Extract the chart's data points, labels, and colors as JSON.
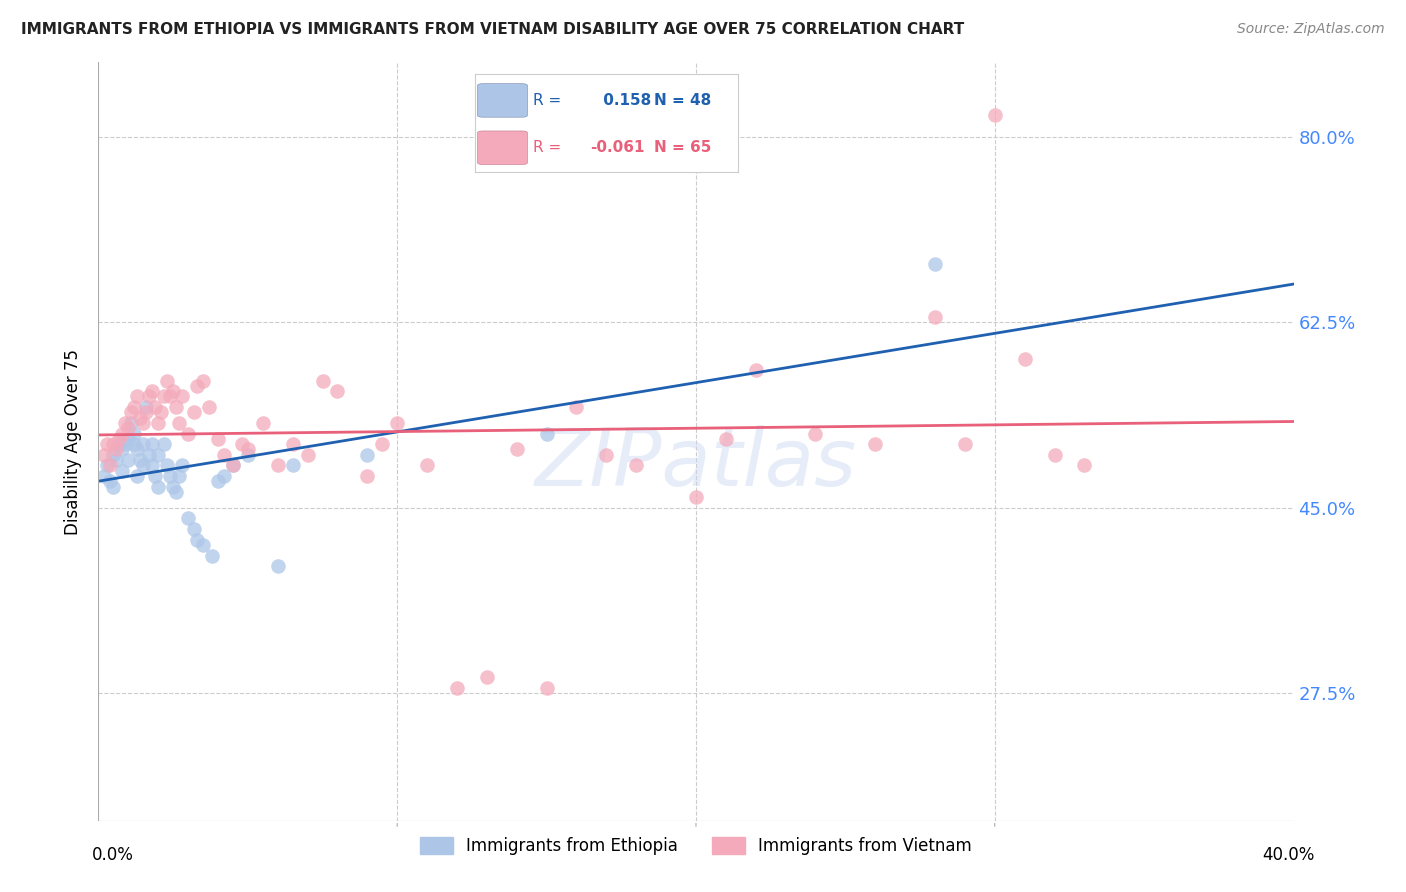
{
  "title": "IMMIGRANTS FROM ETHIOPIA VS IMMIGRANTS FROM VIETNAM DISABILITY AGE OVER 75 CORRELATION CHART",
  "source": "Source: ZipAtlas.com",
  "ylabel": "Disability Age Over 75",
  "ytick_labels": [
    "80.0%",
    "62.5%",
    "45.0%",
    "27.5%"
  ],
  "ytick_values": [
    0.8,
    0.625,
    0.45,
    0.275
  ],
  "xlim": [
    0.0,
    0.4
  ],
  "ylim": [
    0.155,
    0.87
  ],
  "legend_ethiopia": {
    "R": 0.158,
    "N": 48,
    "label": "Immigrants from Ethiopia"
  },
  "legend_vietnam": {
    "R": -0.061,
    "N": 65,
    "label": "Immigrants from Vietnam"
  },
  "color_ethiopia": "#adc6e8",
  "color_vietnam": "#f4aabb",
  "line_color_ethiopia": "#2060b0",
  "line_color_vietnam": "#e8607a",
  "watermark": "ZIPatlas",
  "ethiopia_x": [
    0.002,
    0.003,
    0.004,
    0.005,
    0.005,
    0.006,
    0.007,
    0.008,
    0.008,
    0.009,
    0.01,
    0.01,
    0.011,
    0.012,
    0.012,
    0.013,
    0.013,
    0.014,
    0.015,
    0.015,
    0.016,
    0.017,
    0.018,
    0.018,
    0.019,
    0.02,
    0.02,
    0.022,
    0.023,
    0.024,
    0.025,
    0.026,
    0.027,
    0.028,
    0.03,
    0.032,
    0.033,
    0.035,
    0.038,
    0.04,
    0.042,
    0.045,
    0.05,
    0.06,
    0.065,
    0.09,
    0.15,
    0.28
  ],
  "ethiopia_y": [
    0.48,
    0.49,
    0.475,
    0.5,
    0.47,
    0.495,
    0.51,
    0.505,
    0.485,
    0.51,
    0.515,
    0.495,
    0.53,
    0.52,
    0.51,
    0.505,
    0.48,
    0.495,
    0.51,
    0.49,
    0.545,
    0.5,
    0.49,
    0.51,
    0.48,
    0.5,
    0.47,
    0.51,
    0.49,
    0.48,
    0.47,
    0.465,
    0.48,
    0.49,
    0.44,
    0.43,
    0.42,
    0.415,
    0.405,
    0.475,
    0.48,
    0.49,
    0.5,
    0.395,
    0.49,
    0.5,
    0.52,
    0.68
  ],
  "vietnam_x": [
    0.002,
    0.003,
    0.004,
    0.005,
    0.006,
    0.007,
    0.008,
    0.009,
    0.01,
    0.011,
    0.012,
    0.013,
    0.014,
    0.015,
    0.016,
    0.017,
    0.018,
    0.019,
    0.02,
    0.021,
    0.022,
    0.023,
    0.024,
    0.025,
    0.026,
    0.027,
    0.028,
    0.03,
    0.032,
    0.033,
    0.035,
    0.037,
    0.04,
    0.042,
    0.045,
    0.048,
    0.05,
    0.055,
    0.06,
    0.065,
    0.07,
    0.075,
    0.08,
    0.09,
    0.095,
    0.1,
    0.11,
    0.12,
    0.13,
    0.14,
    0.15,
    0.16,
    0.17,
    0.18,
    0.2,
    0.21,
    0.22,
    0.24,
    0.26,
    0.28,
    0.29,
    0.3,
    0.31,
    0.32,
    0.33
  ],
  "vietnam_y": [
    0.5,
    0.51,
    0.49,
    0.51,
    0.505,
    0.515,
    0.52,
    0.53,
    0.525,
    0.54,
    0.545,
    0.555,
    0.535,
    0.53,
    0.54,
    0.555,
    0.56,
    0.545,
    0.53,
    0.54,
    0.555,
    0.57,
    0.555,
    0.56,
    0.545,
    0.53,
    0.555,
    0.52,
    0.54,
    0.565,
    0.57,
    0.545,
    0.515,
    0.5,
    0.49,
    0.51,
    0.505,
    0.53,
    0.49,
    0.51,
    0.5,
    0.57,
    0.56,
    0.48,
    0.51,
    0.53,
    0.49,
    0.28,
    0.29,
    0.505,
    0.28,
    0.545,
    0.5,
    0.49,
    0.46,
    0.515,
    0.58,
    0.52,
    0.51,
    0.63,
    0.51,
    0.82,
    0.59,
    0.5,
    0.49
  ]
}
